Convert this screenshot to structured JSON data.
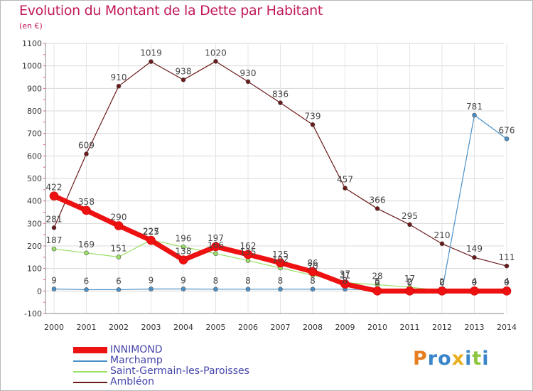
{
  "title": "Evolution du Montant de la Dette par Habitant",
  "subtitle": "(en €)",
  "logo": {
    "text": "Proxiti",
    "colors": [
      "#e67e22",
      "#3a86c8",
      "#3a86c8",
      "#e8b020",
      "#3a86c8",
      "#8dc63f",
      "#3a86c8"
    ]
  },
  "chart_data": {
    "type": "line",
    "title": "Evolution du Montant de la Dette par Habitant",
    "ylabel": "(en €)",
    "xlabel": "",
    "ylim": [
      -100,
      1100
    ],
    "yticks": [
      -100,
      0,
      100,
      200,
      300,
      400,
      500,
      600,
      700,
      800,
      900,
      1000,
      1100
    ],
    "x": [
      "2000",
      "2001",
      "2002",
      "2003",
      "2004",
      "2005",
      "2006",
      "2007",
      "2008",
      "2009",
      "2010",
      "2011",
      "2012",
      "2013",
      "2014"
    ],
    "grid": true,
    "legend_position": "bottom-left",
    "series": [
      {
        "name": "Ambléon",
        "color": "#6b1a1a",
        "width": 1.2,
        "marker": 3,
        "values": [
          281,
          609,
          910,
          1019,
          938,
          1020,
          930,
          836,
          739,
          457,
          366,
          295,
          210,
          149,
          111
        ]
      },
      {
        "name": "Saint-Germain-les-Paroisses",
        "color": "#99e066",
        "width": 1.2,
        "marker": 3,
        "values": [
          187,
          169,
          151,
          227,
          196,
          166,
          135,
          102,
          70,
          37,
          28,
          17,
          2,
          4,
          4
        ]
      },
      {
        "name": "Marchamp",
        "color": "#4a90c8",
        "width": 1.2,
        "marker": 3,
        "values": [
          9,
          6,
          6,
          9,
          9,
          8,
          8,
          8,
          8,
          8,
          5,
          2,
          0,
          781,
          676
        ]
      },
      {
        "name": "INNIMOND",
        "color": "#ee1111",
        "width": 7,
        "marker": 6,
        "values": [
          422,
          358,
          290,
          225,
          138,
          197,
          162,
          125,
          86,
          31,
          0,
          0,
          0,
          0,
          0
        ]
      }
    ]
  }
}
